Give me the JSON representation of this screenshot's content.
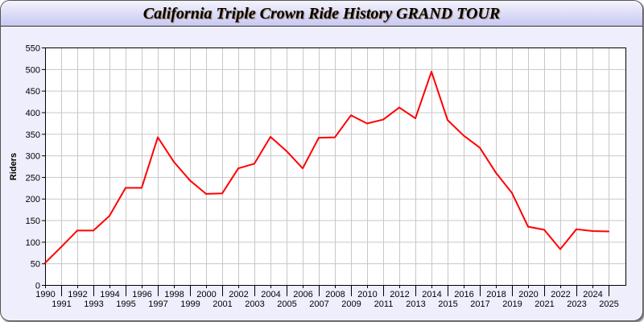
{
  "window": {
    "title": "California Triple Crown Ride History GRAND TOUR"
  },
  "chart_data": {
    "type": "line",
    "title": "California Triple Crown Ride History GRAND TOUR",
    "xlabel": "",
    "ylabel": "Riders",
    "ylim": [
      0,
      550
    ],
    "yticks": [
      0,
      50,
      100,
      150,
      200,
      250,
      300,
      350,
      400,
      450,
      500,
      550
    ],
    "grid": true,
    "x": [
      1990,
      1991,
      1992,
      1993,
      1994,
      1995,
      1996,
      1997,
      1998,
      1999,
      2000,
      2001,
      2002,
      2003,
      2004,
      2005,
      2006,
      2007,
      2008,
      2009,
      2010,
      2011,
      2012,
      2013,
      2014,
      2015,
      2016,
      2017,
      2018,
      2019,
      2020,
      2021,
      2022,
      2023,
      2024,
      2025
    ],
    "series": [
      {
        "color": "#ff0000",
        "values": [
          51,
          88,
          126,
          126,
          160,
          225,
          225,
          342,
          285,
          242,
          211,
          212,
          270,
          281,
          343,
          310,
          270,
          341,
          342,
          393,
          374,
          383,
          411,
          386,
          494,
          382,
          346,
          318,
          260,
          213,
          135,
          128,
          83,
          129,
          125,
          124
        ]
      }
    ]
  }
}
